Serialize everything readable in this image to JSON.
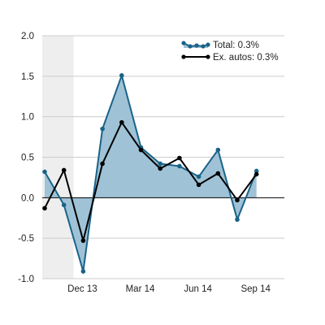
{
  "chart_data": {
    "type": "area",
    "x_labels": [
      "Dec 13",
      "Mar 14",
      "Jun 14",
      "Sep 14"
    ],
    "x_label_index": [
      2,
      5,
      8,
      11
    ],
    "ylim": [
      -1.0,
      2.0
    ],
    "y_ticks": [
      "2.0",
      "1.5",
      "1.0",
      "0.5",
      "0.0",
      "-0.5",
      "-1.0"
    ],
    "y_tick_values": [
      2.0,
      1.5,
      1.0,
      0.5,
      0.0,
      -0.5,
      -1.0
    ],
    "grid": true,
    "legend_position": "top-right",
    "shaded_region_index": [
      0,
      1.5
    ],
    "series": [
      {
        "name": "Total: 0.3%",
        "style": "area",
        "color": "#1a6388",
        "fill": "#9fc2d6",
        "values": [
          0.32,
          -0.09,
          -0.91,
          0.85,
          1.51,
          0.62,
          0.42,
          0.39,
          0.26,
          0.59,
          -0.27,
          0.33
        ]
      },
      {
        "name": "Ex. autos: 0.3%",
        "style": "line",
        "color": "#000000",
        "values": [
          -0.13,
          0.34,
          -0.53,
          0.42,
          0.93,
          0.59,
          0.36,
          0.49,
          0.16,
          0.3,
          -0.03,
          0.29
        ]
      }
    ]
  }
}
